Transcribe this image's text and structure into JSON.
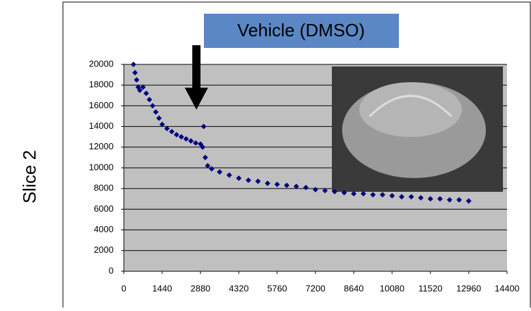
{
  "chart_data": {
    "type": "scatter",
    "title": "Vehicle (DMSO)",
    "y_label": "Slice 2",
    "series": [
      {
        "name": null,
        "color": "#000080",
        "x": [
          360,
          420,
          480,
          540,
          600,
          720,
          840,
          960,
          1080,
          1200,
          1320,
          1440,
          1620,
          1800,
          1980,
          2160,
          2340,
          2520,
          2700,
          2880,
          2960,
          3000,
          3060,
          3150,
          3300,
          3600,
          3960,
          4320,
          4680,
          5040,
          5400,
          5760,
          6120,
          6480,
          6840,
          7200,
          7560,
          7920,
          8280,
          8640,
          9000,
          9360,
          9720,
          10080,
          10440,
          10800,
          11160,
          11520,
          11880,
          12240,
          12600,
          12960
        ],
        "values": [
          20000,
          19200,
          18500,
          17800,
          17500,
          17800,
          17200,
          16600,
          16000,
          15400,
          14800,
          14200,
          13800,
          13500,
          13200,
          13000,
          12800,
          12600,
          12400,
          12300,
          12000,
          14000,
          11000,
          10200,
          9900,
          9600,
          9300,
          9000,
          8800,
          8700,
          8500,
          8400,
          8300,
          8200,
          8100,
          7900,
          7800,
          7700,
          7600,
          7500,
          7500,
          7400,
          7400,
          7300,
          7200,
          7200,
          7100,
          7000,
          7000,
          6900,
          6900,
          6800
        ]
      }
    ],
    "xlim": [
      0,
      14400
    ],
    "xticks": [
      0,
      1440,
      2880,
      4320,
      5760,
      7200,
      8640,
      10080,
      11520,
      12960,
      14400
    ],
    "ylim": [
      0,
      20000
    ],
    "yticks": [
      0,
      2000,
      4000,
      6000,
      8000,
      10000,
      12000,
      14000,
      16000,
      18000,
      20000
    ],
    "grid": true
  }
}
